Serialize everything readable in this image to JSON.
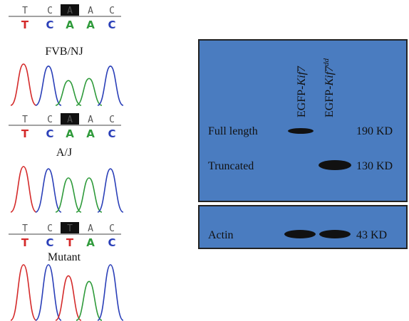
{
  "sequencing": {
    "panels": [
      {
        "reference": [
          "T",
          "C",
          "A",
          "A",
          "C"
        ],
        "calls": [
          "T",
          "C",
          "A",
          "A",
          "C"
        ],
        "label": "FVB/NJ"
      },
      {
        "reference": [
          "T",
          "C",
          "A",
          "A",
          "C"
        ],
        "calls": [
          "T",
          "C",
          "A",
          "A",
          "C"
        ],
        "label": "A/J"
      },
      {
        "reference": [
          "T",
          "C",
          "T",
          "A",
          "C"
        ],
        "calls": [
          "T",
          "C",
          "T",
          "A",
          "C"
        ],
        "label": "Mutant"
      }
    ]
  },
  "blot": {
    "lanes": [
      {
        "prefix": "EGFP-",
        "gene": "Kif7",
        "superscript": ""
      },
      {
        "prefix": "EGFP-",
        "gene": "Kif7",
        "superscript": "dd"
      }
    ],
    "rows": [
      {
        "label": "Full length",
        "size": "190 KD"
      },
      {
        "label": "Truncated",
        "size": "130 KD"
      },
      {
        "label": "Actin",
        "size": "43 KD"
      }
    ]
  }
}
